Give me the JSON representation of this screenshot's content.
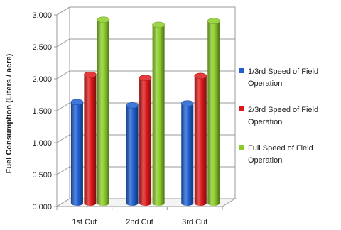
{
  "chart_data": {
    "type": "bar",
    "ylabel": "Fuel Consumption  (Liters / acre)",
    "xlabel": "",
    "ylim": [
      0,
      3
    ],
    "yticks": [
      "0.000",
      "0.500",
      "1.000",
      "1.500",
      "2.000",
      "2.500",
      "3.000"
    ],
    "categories": [
      "1st Cut",
      "2nd Cut",
      "3rd Cut"
    ],
    "series": [
      {
        "name": "1/3rd Speed of Field Operation",
        "color": "#1f5fd0",
        "values": [
          1.58,
          1.53,
          1.56
        ]
      },
      {
        "name": "2/3rd Speed of Field Operation",
        "color": "#dd1a1a",
        "values": [
          2.01,
          1.96,
          1.99
        ]
      },
      {
        "name": "Full Speed of Field Operation",
        "color": "#8ccc2a",
        "values": [
          2.87,
          2.79,
          2.85
        ]
      }
    ],
    "legend": {
      "position": "right",
      "entries": [
        [
          "1/3rd Speed of Field",
          "Operation"
        ],
        [
          "2/3rd Speed of Field",
          "Operation"
        ],
        [
          "Full Speed of Field",
          "Operation"
        ]
      ]
    },
    "grid": true,
    "style": "3d-cylinder"
  }
}
